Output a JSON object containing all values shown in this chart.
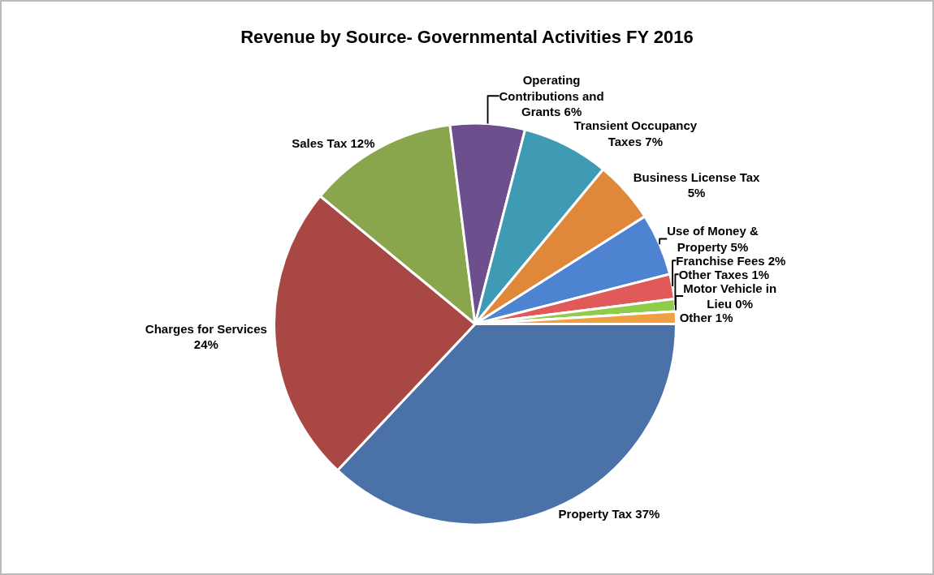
{
  "chart_data": {
    "type": "pie",
    "title": "Revenue by Source- Governmental Activities FY 2016",
    "categories": [
      "Property Tax",
      "Charges for Services",
      "Sales Tax",
      "Operating Contributions and Grants",
      "Transient Occupancy Taxes",
      "Business License Tax",
      "Use of Money & Property",
      "Franchise Fees",
      "Other Taxes",
      "Motor Vehicle in Lieu",
      "Other"
    ],
    "values": [
      37,
      24,
      12,
      6,
      7,
      5,
      5,
      2,
      1,
      0,
      1
    ],
    "value_labels": [
      "37%",
      "24%",
      "12%",
      "6%",
      "7%",
      "5%",
      "5%",
      "2%",
      "1%",
      "0%",
      "1%"
    ],
    "colors": [
      "#4a72a8",
      "#a84744",
      "#8aa64d",
      "#6c4f8c",
      "#3e9bb3",
      "#e0883a",
      "#4d83d0",
      "#e05a5a",
      "#8fcc4a",
      "#9a6fc0",
      "#f0a040"
    ]
  }
}
